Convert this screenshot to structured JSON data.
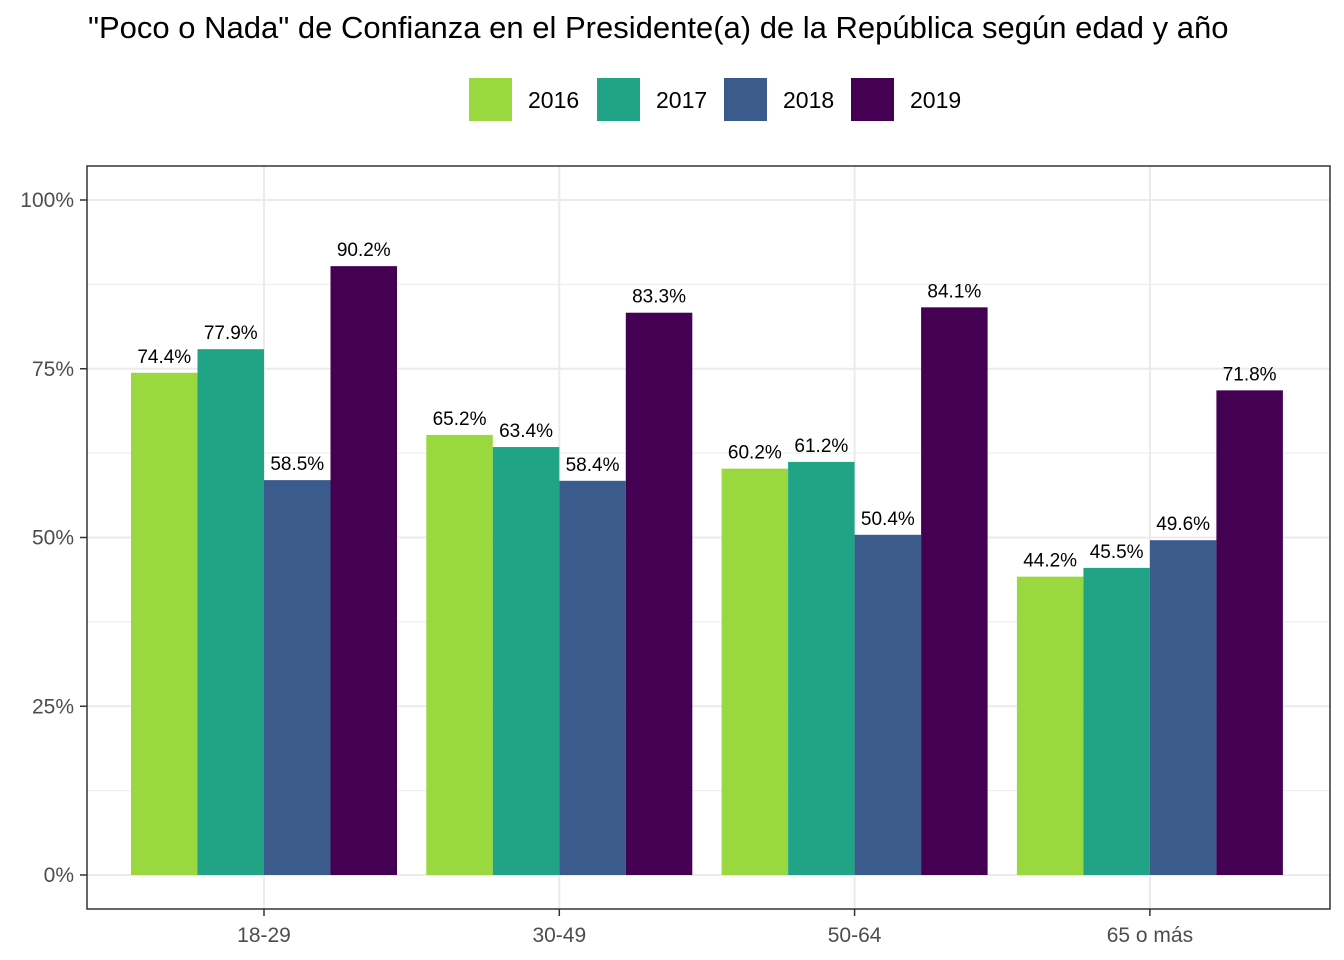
{
  "chart_data": {
    "type": "bar",
    "title": "\"Poco o Nada\" de Confianza en el Presidente(a) de la República según edad y año",
    "categories": [
      "18-29",
      "30-49",
      "50-64",
      "65 o más"
    ],
    "series": [
      {
        "name": "2016",
        "color": "#99d83f",
        "values": [
          74.4,
          65.2,
          60.2,
          44.2
        ]
      },
      {
        "name": "2017",
        "color": "#21a386",
        "values": [
          77.9,
          63.4,
          61.2,
          45.5
        ]
      },
      {
        "name": "2018",
        "color": "#3a5b8c",
        "values": [
          58.5,
          58.4,
          50.4,
          49.6
        ]
      },
      {
        "name": "2019",
        "color": "#440154",
        "values": [
          90.2,
          83.3,
          84.1,
          71.8
        ]
      }
    ],
    "value_labels": [
      [
        "74.4%",
        "65.2%",
        "60.2%",
        "44.2%"
      ],
      [
        "77.9%",
        "63.4%",
        "61.2%",
        "45.5%"
      ],
      [
        "58.5%",
        "58.4%",
        "50.4%",
        "49.6%"
      ],
      [
        "90.2%",
        "83.3%",
        "84.1%",
        "71.8%"
      ]
    ],
    "ylim": [
      0,
      100
    ],
    "yticks": [
      0,
      25,
      50,
      75,
      100
    ],
    "ytick_labels": [
      "0%",
      "25%",
      "50%",
      "75%",
      "100%"
    ],
    "xlabel": "",
    "ylabel": "",
    "legend_position": "top",
    "grid": true
  }
}
